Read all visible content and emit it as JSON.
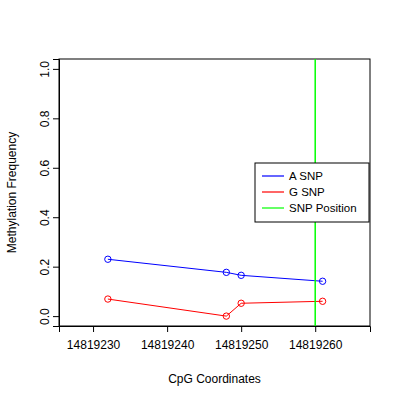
{
  "chart_data": {
    "type": "line",
    "x_label": "CpG Coordinates",
    "y_label": "Methylation Frequency",
    "xlim": [
      14819225.4,
      14819267.4
    ],
    "xticks": [
      14819230,
      14819240,
      14819250,
      14819260
    ],
    "ylim": [
      -0.04,
      1.04
    ],
    "yticks": [
      {
        "value": 0,
        "label": "0.0"
      },
      0.2,
      0.4,
      0.6,
      0.8,
      {
        "value": 1,
        "label": "1.0"
      }
    ],
    "legend": "right",
    "marker": "circle",
    "series": [
      {
        "name": "A SNP",
        "color": "#0000ff",
        "x": [
          14819232,
          14819248,
          14819250,
          14819261
        ],
        "values": [
          0.23,
          0.177,
          0.165,
          0.141
        ]
      },
      {
        "name": "G SNP",
        "color": "#ff0000",
        "x": [
          14819232,
          14819248,
          14819250,
          14819261
        ],
        "values": [
          0.069,
          0.0,
          0.052,
          0.06
        ]
      },
      {
        "name": "SNP Position",
        "color": "#00ff00",
        "type": "vline",
        "x": [
          14819260
        ]
      }
    ]
  }
}
